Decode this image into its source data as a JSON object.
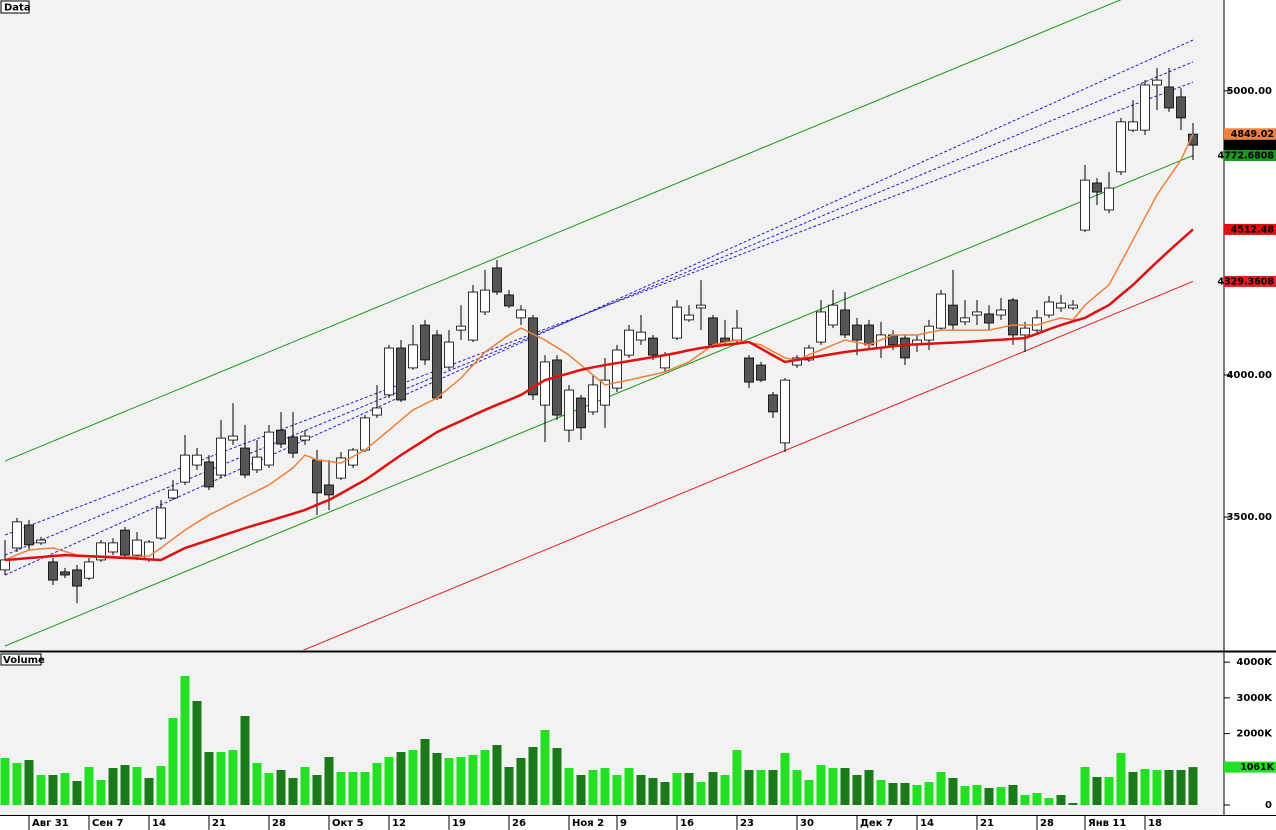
{
  "chart_data": [
    {
      "type": "candlestick",
      "title": "Data",
      "categories": [
        null,
        null,
        "Авг 31",
        null,
        null,
        null,
        null,
        "Сен 7",
        null,
        null,
        null,
        null,
        "14",
        null,
        null,
        null,
        null,
        "21",
        null,
        null,
        null,
        null,
        "28",
        null,
        null,
        null,
        null,
        "Окт 5",
        null,
        null,
        null,
        null,
        "12",
        null,
        null,
        null,
        null,
        "19",
        null,
        null,
        null,
        null,
        "26",
        null,
        null,
        null,
        null,
        "Ноя 2",
        null,
        null,
        null,
        "9",
        null,
        null,
        null,
        null,
        "16",
        null,
        null,
        null,
        null,
        "23",
        null,
        null,
        null,
        null,
        "30",
        null,
        null,
        null,
        null,
        "Дек 7",
        null,
        null,
        null,
        null,
        "14",
        null,
        null,
        null,
        null,
        "21",
        null,
        null,
        null,
        null,
        "28",
        null,
        null,
        null,
        "Янв 11",
        null,
        null,
        null,
        null,
        "18",
        null,
        null,
        null,
        null
      ],
      "open": [
        3314,
        3391,
        3472,
        3409,
        3342,
        3307,
        3314,
        3285,
        3349,
        3377,
        3454,
        3366,
        3349,
        3426,
        3567,
        3623,
        3683,
        3694,
        3648,
        3771,
        3743,
        3666,
        3683,
        3806,
        3782,
        3771,
        3701,
        3613,
        3637,
        3683,
        3736,
        3859,
        3930,
        4095,
        4025,
        4176,
        4141,
        4028,
        4158,
        4123,
        4222,
        4377,
        4282,
        4201,
        4201,
        3894,
        4053,
        3806,
        3919,
        3870,
        3894,
        3954,
        4070,
        4123,
        4130,
        4025,
        4130,
        4194,
        4236,
        4201,
        4130,
        4123,
        4060,
        4035,
        3930,
        3761,
        4035,
        4053,
        4116,
        4176,
        4229,
        4176,
        4176,
        4095,
        4141,
        4130,
        4106,
        4123,
        4165,
        4246,
        4187,
        4211,
        4215,
        4211,
        4264,
        4141,
        4158,
        4211,
        4236,
        4236,
        4510,
        4676,
        4581,
        4715,
        4862,
        4862,
        5021,
        5014,
        4979,
        4848
      ],
      "high": [
        3419,
        3497,
        3490,
        3430,
        3356,
        3321,
        3331,
        3356,
        3419,
        3426,
        3465,
        3447,
        3419,
        3560,
        3630,
        3789,
        3743,
        3718,
        3842,
        3901,
        3824,
        3771,
        3824,
        3870,
        3870,
        3806,
        3736,
        3701,
        3729,
        3743,
        3859,
        3965,
        4106,
        4123,
        4176,
        4194,
        4158,
        4158,
        4246,
        4317,
        4370,
        4405,
        4299,
        4246,
        4211,
        4070,
        4070,
        3965,
        3930,
        4000,
        4060,
        4106,
        4176,
        4211,
        4141,
        4081,
        4264,
        4246,
        4334,
        4211,
        4194,
        4229,
        4070,
        4046,
        3940,
        3989,
        4070,
        4106,
        4264,
        4299,
        4292,
        4201,
        4194,
        4187,
        4158,
        4141,
        4141,
        4194,
        4299,
        4370,
        4264,
        4264,
        4246,
        4271,
        4271,
        4187,
        4229,
        4278,
        4282,
        4264,
        4739,
        4693,
        4715,
        4905,
        4968,
        5038,
        5081,
        5081,
        5010,
        4887
      ],
      "low": [
        3296,
        3377,
        3384,
        3402,
        3261,
        3285,
        3197,
        3278,
        3342,
        3366,
        3356,
        3349,
        3342,
        3419,
        3560,
        3613,
        3666,
        3595,
        3637,
        3754,
        3637,
        3655,
        3673,
        3743,
        3708,
        3754,
        3507,
        3525,
        3630,
        3673,
        3729,
        3849,
        3919,
        3905,
        4018,
        4035,
        3912,
        4018,
        4123,
        4116,
        4211,
        4282,
        4236,
        4176,
        3912,
        3764,
        3842,
        3764,
        3771,
        3859,
        3814,
        3940,
        4060,
        4106,
        4053,
        4011,
        4123,
        4187,
        4158,
        4095,
        4106,
        4106,
        3954,
        3975,
        3849,
        3729,
        4025,
        4046,
        4106,
        4165,
        4130,
        4070,
        4088,
        4060,
        4088,
        4035,
        4081,
        4088,
        4158,
        4158,
        4176,
        4176,
        4158,
        4194,
        4106,
        4081,
        4141,
        4201,
        4222,
        4229,
        4503,
        4598,
        4570,
        4704,
        4855,
        4845,
        4933,
        4926,
        4862,
        4757
      ],
      "close": [
        3349,
        3483,
        3402,
        3419,
        3278,
        3296,
        3257,
        3342,
        3409,
        3409,
        3366,
        3419,
        3412,
        3532,
        3595,
        3718,
        3718,
        3606,
        3778,
        3785,
        3648,
        3711,
        3799,
        3757,
        3725,
        3785,
        3585,
        3578,
        3708,
        3736,
        3849,
        3884,
        4095,
        3912,
        4106,
        4053,
        3919,
        4116,
        4172,
        4292,
        4299,
        4292,
        4243,
        4229,
        3930,
        4046,
        3859,
        3947,
        3814,
        3965,
        3982,
        4088,
        4158,
        4151,
        4070,
        4070,
        4239,
        4211,
        4246,
        4106,
        4116,
        4165,
        3975,
        3982,
        3870,
        3982,
        4060,
        4095,
        4222,
        4246,
        4141,
        4123,
        4106,
        4141,
        4106,
        4060,
        4123,
        4172,
        4285,
        4176,
        4201,
        4222,
        4183,
        4229,
        4141,
        4165,
        4201,
        4257,
        4253,
        4246,
        4686,
        4644,
        4658,
        4891,
        4891,
        5021,
        5038,
        4940,
        4905,
        4809.15
      ],
      "up_color": "#ffffff",
      "down_color": "#555555",
      "badge_color": "#000000",
      "series": [
        {
          "color": "#f0803c",
          "badge": true,
          "values": [
            3349,
            3367,
            3384,
            3388,
            3391,
            3379,
            3366,
            3364,
            3363,
            3361,
            3359,
            3361,
            3363,
            3391,
            3423,
            3454,
            3481,
            3507,
            3528,
            3550,
            3571,
            3592,
            3613,
            3643,
            3673,
            3718,
            3701,
            3696,
            3690,
            3713,
            3736,
            3771,
            3806,
            3842,
            3877,
            3898,
            3919,
            3954,
            3989,
            4035,
            4081,
            4111,
            4141,
            4165,
            4144,
            4123,
            4097,
            4070,
            4035,
            4000,
            3965,
            3974,
            3982,
            3992,
            4001,
            4011,
            4029,
            4046,
            4076,
            4106,
            4115,
            4123,
            4115,
            4106,
            4083,
            4060,
            4053,
            4071,
            4088,
            4106,
            4123,
            4115,
            4106,
            4124,
            4141,
            4141,
            4141,
            4150,
            4158,
            4158,
            4158,
            4158,
            4158,
            4167,
            4176,
            4176,
            4176,
            4189,
            4201,
            4194,
            4246,
            4282,
            4317,
            4396,
            4475,
            4555,
            4634,
            4696,
            4757,
            4849.02
          ]
        },
        {
          "color": "#e01010",
          "badge": true,
          "values": [
            3349,
            3352,
            3356,
            3359,
            3363,
            3366,
            3364,
            3362,
            3360,
            3358,
            3356,
            3354,
            3351,
            3349,
            3370,
            3391,
            3405,
            3419,
            3433,
            3447,
            3461,
            3474,
            3486,
            3499,
            3512,
            3525,
            3543,
            3560,
            3583,
            3607,
            3630,
            3659,
            3689,
            3718,
            3745,
            3772,
            3799,
            3819,
            3838,
            3858,
            3877,
            3895,
            3912,
            3930,
            3956,
            3982,
            3994,
            4006,
            4018,
            4027,
            4035,
            4042,
            4049,
            4056,
            4063,
            4070,
            4078,
            4087,
            4095,
            4101,
            4106,
            4111,
            4116,
            4093,
            4069,
            4046,
            4053,
            4060,
            4067,
            4074,
            4081,
            4086,
            4091,
            4096,
            4101,
            4106,
            4108,
            4110,
            4112,
            4114,
            4116,
            4119,
            4122,
            4124,
            4127,
            4130,
            4145,
            4161,
            4176,
            4189,
            4201,
            4224,
            4246,
            4282,
            4317,
            4358,
            4398,
            4437,
            4475,
            4512.48
          ]
        }
      ],
      "trendlines": [
        {
          "color": "#1a9a1a",
          "values": [
            3697,
            5426
          ]
        },
        {
          "color": "#1a9a1a",
          "badge": true,
          "values": [
            3046,
            4772.6808
          ]
        },
        {
          "color": "#e02020",
          "badge": true,
          "values": [
            2596,
            4329.3608
          ]
        },
        {
          "color": "#2020d0",
          "dashed": true,
          "values": [
            3296,
            5179
          ]
        },
        {
          "color": "#2020d0",
          "dashed": true,
          "values": [
            3366,
            5102
          ]
        },
        {
          "color": "#2020d0",
          "dashed": true,
          "values": [
            3437,
            5031
          ]
        }
      ],
      "ylim": [
        3032,
        5320
      ],
      "yticks": [
        {
          "value": 3500,
          "label": "3500.00"
        },
        {
          "value": 4000,
          "label": "4000.00"
        },
        {
          "value": 5000,
          "label": "5000.00"
        }
      ]
    },
    {
      "type": "bar",
      "title": "Volume",
      "values": [
        1316,
        1176,
        1260,
        840,
        840,
        896,
        672,
        1064,
        700,
        1036,
        1120,
        1064,
        756,
        1092,
        2436,
        3612,
        2912,
        1484,
        1484,
        1540,
        2492,
        1176,
        896,
        980,
        756,
        1064,
        840,
        1344,
        924,
        924,
        924,
        1176,
        1344,
        1484,
        1540,
        1848,
        1456,
        1316,
        1344,
        1400,
        1540,
        1680,
        1064,
        1316,
        1624,
        2100,
        1596,
        1036,
        840,
        980,
        1036,
        840,
        1036,
        840,
        756,
        644,
        896,
        896,
        644,
        924,
        840,
        1540,
        980,
        980,
        980,
        1456,
        980,
        700,
        1120,
        1036,
        1036,
        840,
        980,
        700,
        616,
        616,
        560,
        644,
        924,
        756,
        532,
        560,
        476,
        504,
        560,
        280,
        336,
        196,
        280,
        56,
        1064,
        784,
        784,
        1456,
        924,
        1008,
        980,
        980,
        980,
        1061
      ],
      "value_labels": [
        null,
        null,
        null,
        null,
        null,
        null,
        null,
        null,
        null,
        null,
        null,
        null,
        null,
        null,
        null,
        null,
        null,
        null,
        null,
        null,
        null,
        null,
        null,
        null,
        null,
        null,
        null,
        null,
        null,
        null,
        null,
        null,
        null,
        null,
        null,
        null,
        null,
        null,
        null,
        null,
        null,
        null,
        null,
        null,
        null,
        null,
        null,
        null,
        null,
        null,
        null,
        null,
        null,
        null,
        null,
        null,
        null,
        null,
        null,
        null,
        null,
        null,
        null,
        null,
        null,
        null,
        null,
        null,
        null,
        null,
        null,
        null,
        null,
        null,
        null,
        null,
        null,
        null,
        null,
        null,
        null,
        null,
        null,
        null,
        null,
        null,
        null,
        null,
        null,
        null,
        null,
        null,
        null,
        null,
        null,
        null,
        null,
        null,
        null,
        "1061K"
      ],
      "up_color": "#22e022",
      "down_color": "#1a7a1a",
      "badge_color": "#22e022",
      "ylim": [
        0,
        4200
      ],
      "yticks": [
        0,
        {
          "value": 1000,
          "label": "1000K"
        },
        {
          "value": 2000,
          "label": "2000K"
        },
        {
          "value": 3000,
          "label": "3000K"
        },
        {
          "value": 4000,
          "label": "4000K"
        }
      ]
    }
  ]
}
